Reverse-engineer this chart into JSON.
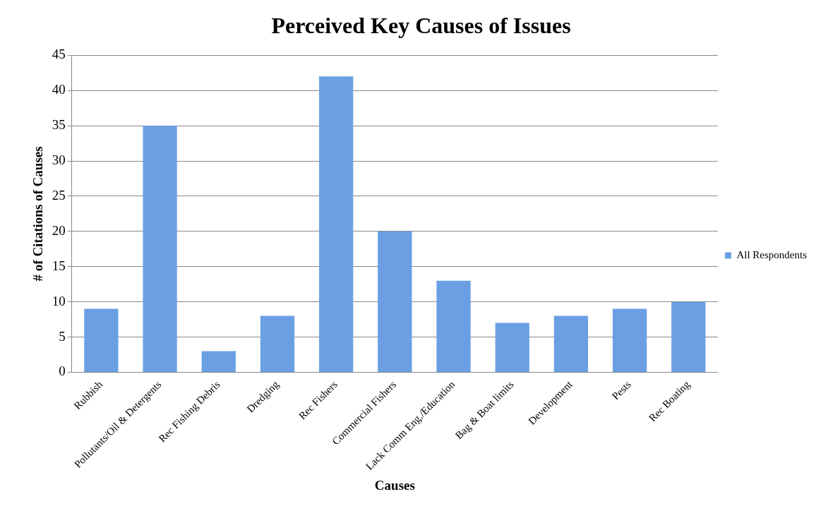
{
  "chart_data": {
    "type": "bar",
    "title": "Perceived Key Causes of Issues",
    "xlabel": "Causes",
    "ylabel": "# of Citations of Causes",
    "categories": [
      "Rubbish",
      "Pollutants/Oil & Detergents",
      "Rec Fishing Debris",
      "Dredging",
      "Rec Fishers",
      "Commercial Fishers",
      "Lack Comm Eng./Education",
      "Bag & Boat limits",
      "Development",
      "Pests",
      "Rec Boating"
    ],
    "series": [
      {
        "name": "All Respondents",
        "color": "#6a9fe3",
        "values": [
          9,
          35,
          3,
          8,
          42,
          20,
          13,
          7,
          8,
          9,
          10
        ]
      }
    ],
    "ylim": [
      0,
      45
    ],
    "yticks": [
      0,
      5,
      10,
      15,
      20,
      25,
      30,
      35,
      40,
      45
    ],
    "grid": "y",
    "legend": "right"
  }
}
